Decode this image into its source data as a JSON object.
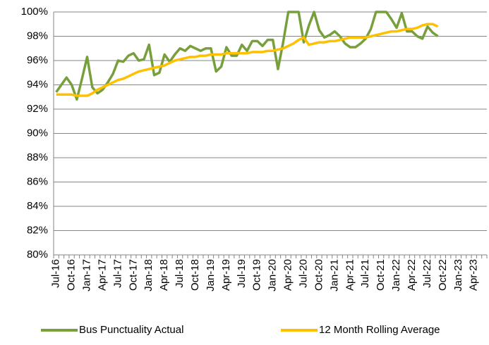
{
  "chart_data": {
    "type": "line",
    "categories": [
      "Jul-16",
      null,
      null,
      "Oct-16",
      null,
      null,
      "Jan-17",
      null,
      null,
      "Apr-17",
      null,
      null,
      "Jul-17",
      null,
      null,
      "Oct-17",
      null,
      null,
      "Jan-18",
      null,
      null,
      "Apr-18",
      null,
      null,
      "Jul-18",
      null,
      null,
      "Oct-18",
      null,
      null,
      "Jan-19",
      null,
      null,
      "Apr-19",
      null,
      null,
      "Jul-19",
      null,
      null,
      "Oct-19",
      null,
      null,
      "Jan-20",
      null,
      null,
      "Apr-20",
      null,
      null,
      "Jul-20",
      null,
      null,
      "Oct-20",
      null,
      null,
      "Jan-21",
      null,
      null,
      "Apr-21",
      null,
      null,
      "Jul-21",
      null,
      null,
      "Oct-21",
      null,
      null,
      "Jan-22",
      null,
      null,
      "Apr-22",
      null,
      null,
      "Jul-22",
      null,
      null,
      "Oct-22",
      null,
      null,
      "Jan-23",
      null,
      null,
      "Apr-23",
      null,
      null
    ],
    "series": [
      {
        "name": "Bus Punctuality Actual",
        "color": "#77a03c",
        "values": [
          93.4,
          94.0,
          94.6,
          94.0,
          92.8,
          94.5,
          96.3,
          93.8,
          93.3,
          93.6,
          94.2,
          94.9,
          96.0,
          95.9,
          96.4,
          96.6,
          96.0,
          96.1,
          97.3,
          94.8,
          95.0,
          96.5,
          95.9,
          96.5,
          97.0,
          96.8,
          97.2,
          97.0,
          96.8,
          97.0,
          97.0,
          95.1,
          95.5,
          97.1,
          96.4,
          96.4,
          97.3,
          96.8,
          97.6,
          97.6,
          97.2,
          97.7,
          97.7,
          95.3,
          97.5,
          100,
          100,
          100,
          97.5,
          98.9,
          100,
          98.5,
          97.9,
          98.1,
          98.4,
          98.0,
          97.4,
          97.1,
          97.1,
          97.4,
          97.8,
          98.6,
          100,
          100,
          100,
          99.4,
          98.7,
          99.9,
          98.4,
          98.4,
          98.0,
          97.8,
          98.8,
          98.3,
          98.0,
          null,
          null,
          null,
          null,
          null,
          null,
          null,
          null,
          null
        ]
      },
      {
        "name": "12 Month Rolling Average",
        "color": "#ffc000",
        "values": [
          93.2,
          93.2,
          93.2,
          93.2,
          93.1,
          93.1,
          93.1,
          93.3,
          93.6,
          93.8,
          94.0,
          94.2,
          94.4,
          94.5,
          94.7,
          94.9,
          95.1,
          95.2,
          95.3,
          95.4,
          95.5,
          95.6,
          95.8,
          96.0,
          96.1,
          96.2,
          96.3,
          96.3,
          96.4,
          96.4,
          96.5,
          96.5,
          96.5,
          96.6,
          96.6,
          96.6,
          96.6,
          96.6,
          96.7,
          96.7,
          96.7,
          96.8,
          96.8,
          96.9,
          97.0,
          97.2,
          97.4,
          97.7,
          97.9,
          97.3,
          97.4,
          97.5,
          97.5,
          97.6,
          97.6,
          97.7,
          97.8,
          97.9,
          97.9,
          97.9,
          97.9,
          98.0,
          98.1,
          98.2,
          98.3,
          98.4,
          98.4,
          98.5,
          98.6,
          98.6,
          98.7,
          98.9,
          99.0,
          99.0,
          98.8,
          null,
          null,
          null,
          null,
          null,
          null,
          null,
          null,
          null
        ]
      }
    ],
    "ylim": [
      80,
      100
    ],
    "yticks": [
      {
        "value": 80,
        "label": "80%"
      },
      {
        "value": 82,
        "label": "82%"
      },
      {
        "value": 84,
        "label": "84%"
      },
      {
        "value": 86,
        "label": "86%"
      },
      {
        "value": 88,
        "label": "88%"
      },
      {
        "value": 90,
        "label": "90%"
      },
      {
        "value": 92,
        "label": "92%"
      },
      {
        "value": 94,
        "label": "94%"
      },
      {
        "value": 96,
        "label": "96%"
      },
      {
        "value": 98,
        "label": "98%"
      },
      {
        "value": 100,
        "label": "100%"
      }
    ],
    "grid": true,
    "legend": "bottom"
  }
}
